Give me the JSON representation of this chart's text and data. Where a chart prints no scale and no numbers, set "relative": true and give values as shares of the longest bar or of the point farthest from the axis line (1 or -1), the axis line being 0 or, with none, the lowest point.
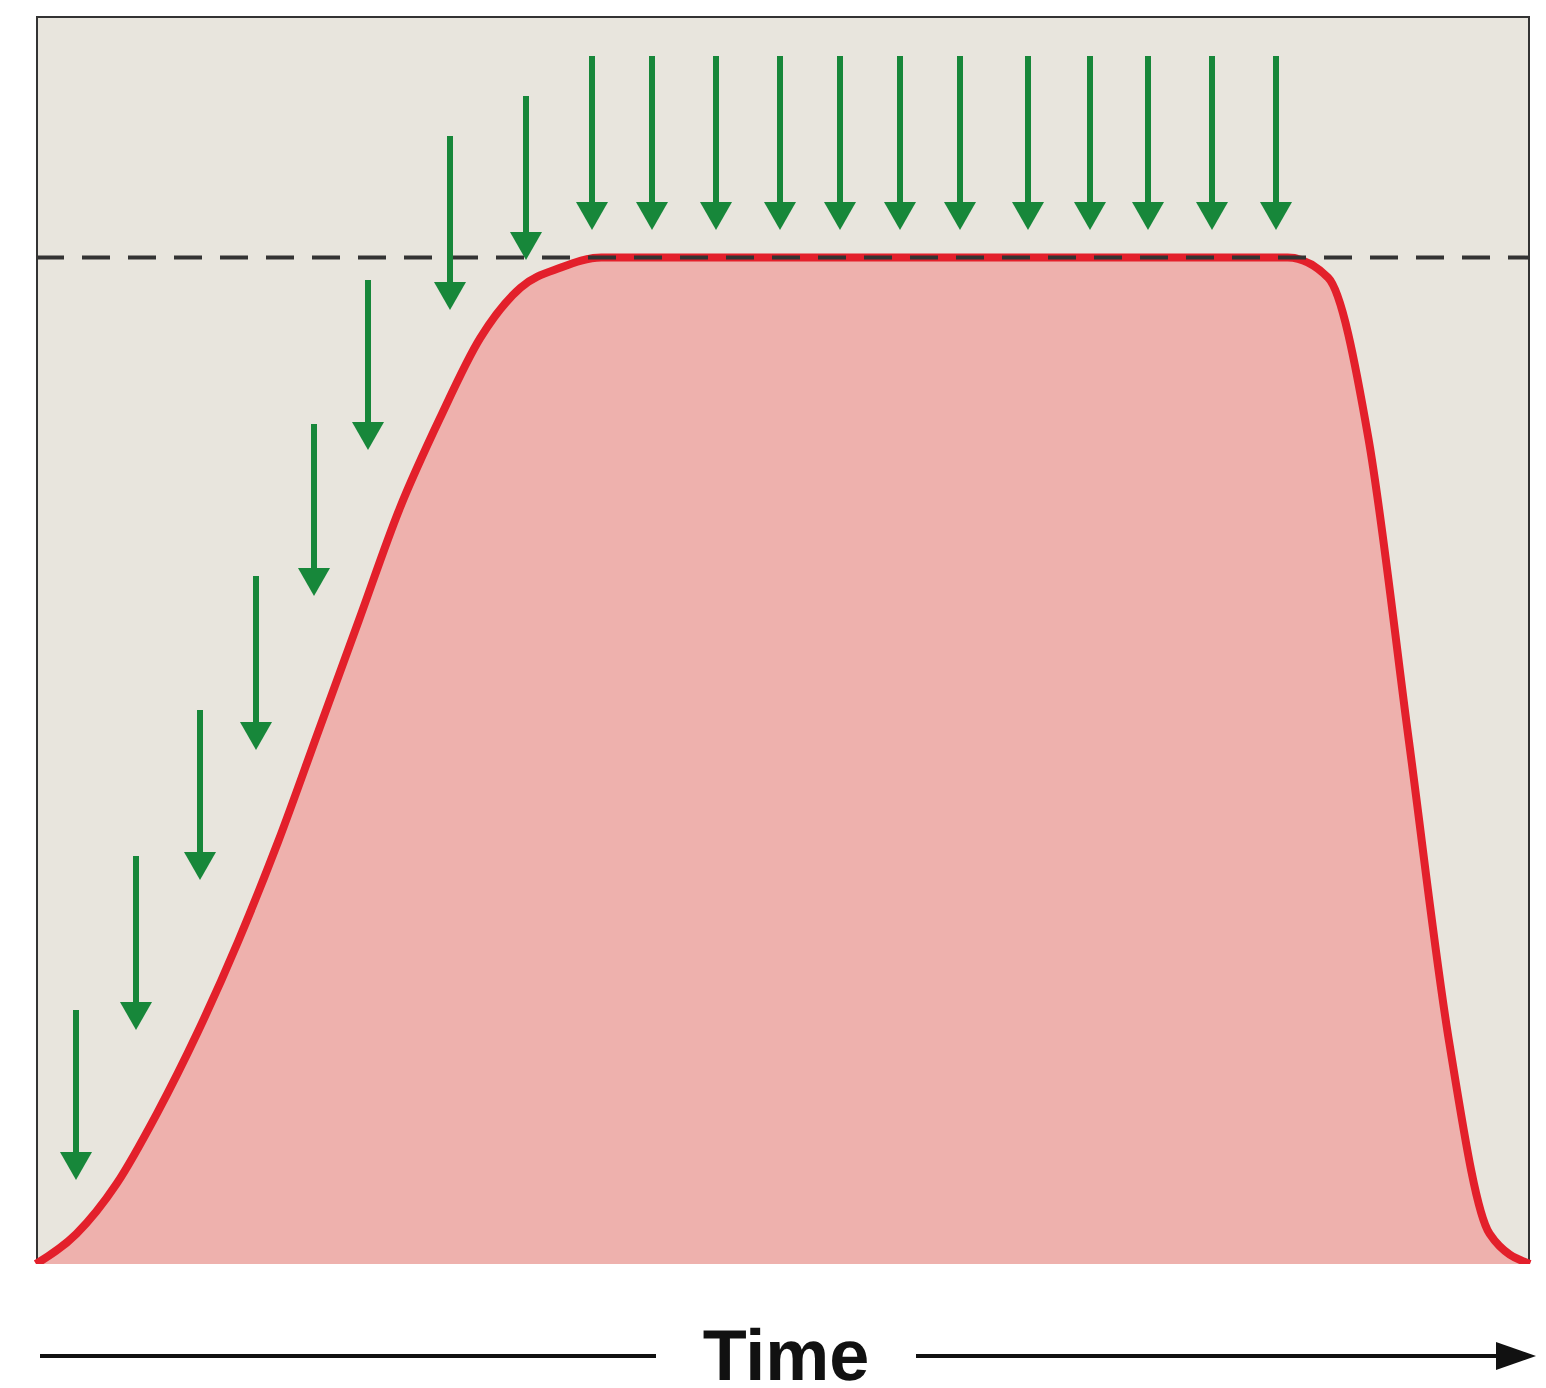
{
  "chart_data": {
    "type": "area",
    "relative": true,
    "xlabel": "Time",
    "categories": [
      null,
      null,
      null,
      null,
      null,
      null,
      null,
      null,
      null,
      null,
      null,
      null,
      null,
      null,
      null,
      null,
      null,
      null,
      null,
      null,
      null,
      null,
      null,
      null,
      null,
      null,
      null,
      null,
      null,
      null,
      null,
      null,
      null,
      null,
      null,
      null,
      null,
      null
    ],
    "series": [
      {
        "color": "#e3202b",
        "values": [
          0,
          0.03,
          0.08,
          0.15,
          0.23,
          0.32,
          0.42,
          0.53,
          0.64,
          0.75,
          0.84,
          0.92,
          0.97,
          0.99,
          1,
          1,
          1,
          1,
          1,
          1,
          1,
          1,
          1,
          1,
          1,
          1,
          1,
          1,
          1,
          1,
          1,
          1,
          0.98,
          0.82,
          0.52,
          0.22,
          0.03,
          0
        ]
      }
    ],
    "ref_lines": [
      {
        "axis": "y",
        "value": 1,
        "color": "#333333",
        "line_style": "dashed"
      }
    ]
  }
}
